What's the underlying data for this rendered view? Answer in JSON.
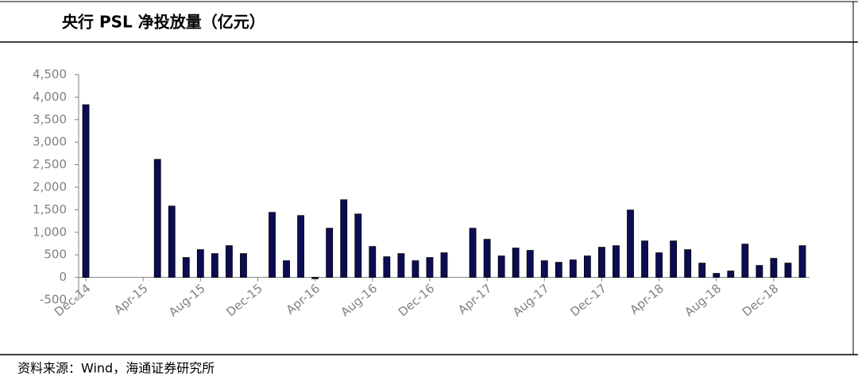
{
  "chart_data": {
    "type": "bar",
    "title": "央行 PSL 净投放量（亿元）",
    "source": "资料来源：Wind，海通证券研究所",
    "categories": [
      "Dec-14",
      null,
      null,
      null,
      "Apr-15",
      null,
      null,
      null,
      "Aug-15",
      null,
      null,
      null,
      "Dec-15",
      null,
      null,
      null,
      "Apr-16",
      null,
      null,
      null,
      "Aug-16",
      null,
      null,
      null,
      "Dec-16",
      null,
      null,
      null,
      "Apr-17",
      null,
      null,
      null,
      "Aug-17",
      null,
      null,
      null,
      "Dec-17",
      null,
      null,
      null,
      "Apr-18",
      null,
      null,
      null,
      "Aug-18",
      null,
      null,
      null,
      "Dec-18",
      null,
      null
    ],
    "values": [
      3831,
      0,
      0,
      0,
      0,
      2618,
      1582,
      440,
      615,
      527,
      703,
      527,
      0,
      1441,
      369,
      1371,
      -30,
      1090,
      1722,
      1406,
      685,
      457,
      527,
      369,
      440,
      545,
      0,
      1090,
      844,
      475,
      650,
      598,
      369,
      334,
      387,
      475,
      668,
      703,
      1494,
      808,
      545,
      808,
      615,
      316,
      88,
      141,
      738,
      264,
      422,
      316,
      703
    ],
    "color": "#0c0c55",
    "ylim": [
      -500,
      4500
    ],
    "yticks": [
      {
        "value": -500,
        "label": "-500"
      },
      0,
      500,
      {
        "value": 1000,
        "label": "1,000"
      },
      {
        "value": 1500,
        "label": "1,500"
      },
      {
        "value": 2000,
        "label": "2,000"
      },
      {
        "value": 2500,
        "label": "2,500"
      },
      {
        "value": 3000,
        "label": "3,000"
      },
      {
        "value": 3500,
        "label": "3,500"
      },
      {
        "value": 4000,
        "label": "4,000"
      },
      {
        "value": 4500,
        "label": "4,500"
      }
    ],
    "grid": false
  }
}
